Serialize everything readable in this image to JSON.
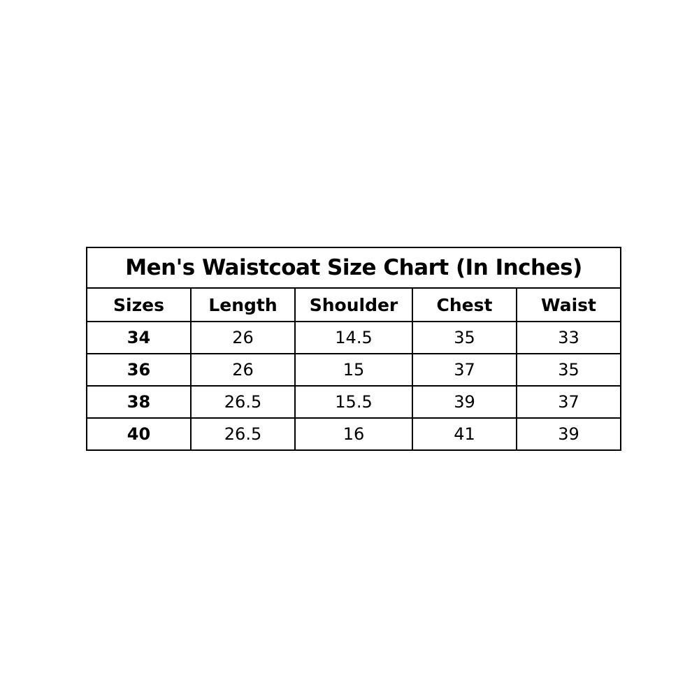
{
  "title": "Men's Waistcoat Size Chart (In Inches)",
  "columns": [
    "Sizes",
    "Length",
    "Shoulder",
    "Chest",
    "Waist"
  ],
  "rows": [
    [
      "34",
      "26",
      "14.5",
      "35",
      "33"
    ],
    [
      "36",
      "26",
      "15",
      "37",
      "35"
    ],
    [
      "38",
      "26.5",
      "15.5",
      "39",
      "37"
    ],
    [
      "40",
      "26.5",
      "16",
      "41",
      "39"
    ]
  ]
}
